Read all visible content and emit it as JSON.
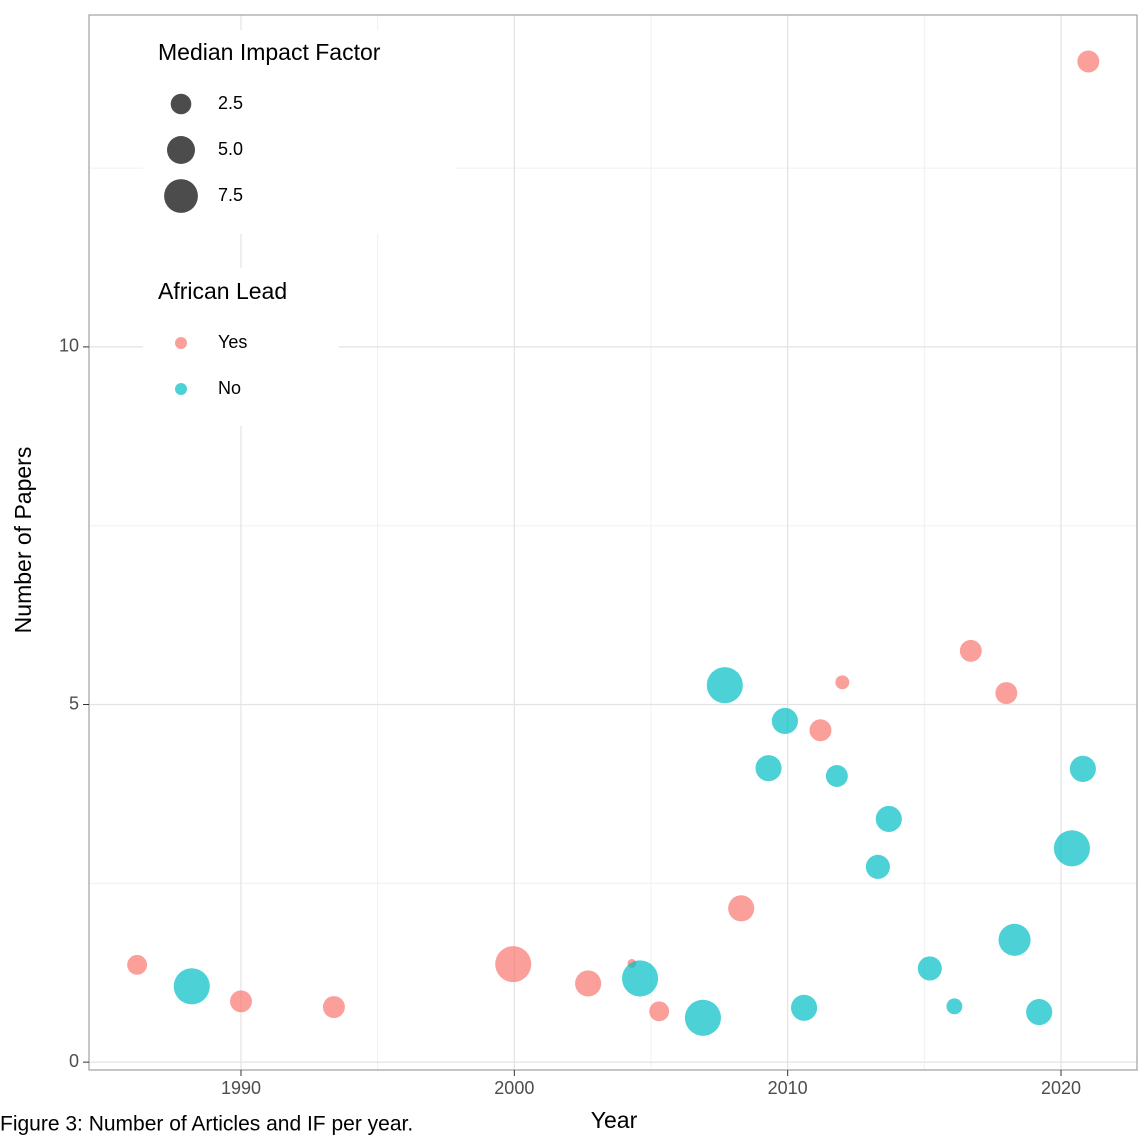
{
  "chart_data": {
    "type": "scatter",
    "caption": "Figure 3: Number of Articles and IF per year.",
    "x_label": "Year",
    "y_label": "Number of Papers",
    "xlim": [
      1984.44,
      2022.78
    ],
    "ylim": [
      -0.11,
      14.64
    ],
    "xticks": [
      1990,
      2000,
      2010,
      2020
    ],
    "yticks": [
      0,
      5,
      10
    ],
    "grid": true,
    "minor_grid": true,
    "legend_position": "top-left",
    "size_legend": {
      "title": "Median Impact Factor",
      "values": [
        2.5,
        {
          "value": 5,
          "label": "5.0"
        },
        7.5
      ]
    },
    "color_legend_title": "African Lead",
    "series": [
      {
        "name": "Yes",
        "color": "#F8766D",
        "x": [
          1986.2,
          1990.0,
          1993.4,
          1999.96,
          2002.7,
          2004.3,
          2005.3,
          2008.3,
          2011.2,
          2012.0,
          2016.7,
          2018.0,
          2021.0
        ],
        "values": [
          1.36,
          0.85,
          0.77,
          1.37,
          1.1,
          1.38,
          0.71,
          2.15,
          4.64,
          5.31,
          5.75,
          5.16,
          13.99
        ],
        "sizes": [
          2.3,
          2.9,
          2.9,
          8.6,
          4.3,
          0.1,
          2.3,
          4.3,
          2.9,
          0.9,
          2.9,
          2.9,
          2.9
        ]
      },
      {
        "name": "No",
        "color": "#00BFC4",
        "x": [
          1988.2,
          2004.6,
          2006.9,
          2007.7,
          2009.3,
          2009.9,
          2010.6,
          2011.8,
          2013.3,
          2013.7,
          2015.2,
          2016.1,
          2018.3,
          2019.2,
          2020.4,
          2020.8
        ],
        "values": [
          1.06,
          1.17,
          0.62,
          5.27,
          4.11,
          4.77,
          0.76,
          4.0,
          2.73,
          3.4,
          1.31,
          0.78,
          1.71,
          0.7,
          2.99,
          4.1
        ],
        "sizes": [
          8.6,
          8.6,
          8.6,
          8.6,
          4.3,
          4.3,
          4.3,
          2.9,
          3.6,
          4.3,
          3.6,
          1.3,
          6.7,
          4.3,
          8.6,
          4.3
        ]
      }
    ]
  }
}
